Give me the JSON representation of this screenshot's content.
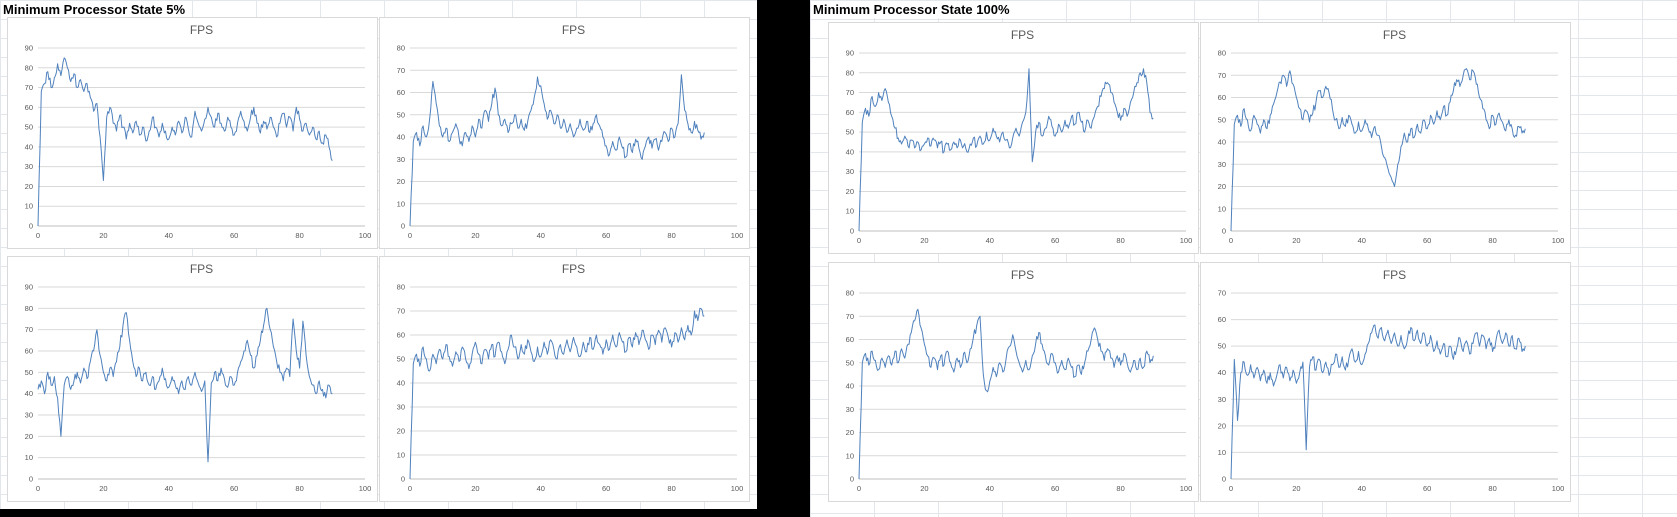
{
  "left_pane": {
    "title": "Minimum Processor State 5%"
  },
  "right_pane": {
    "title": "Minimum Processor State 100%"
  },
  "chart_data": [
    {
      "id": "5pct-run-1",
      "group": "Minimum Processor State 5%",
      "type": "line",
      "title": "FPS",
      "xlabel": "",
      "ylabel": "",
      "xlim": [
        0,
        100
      ],
      "ylim": [
        0,
        90
      ],
      "ytick_step": 10,
      "xticks": [
        0,
        20,
        40,
        60,
        80,
        100
      ],
      "x_data_max": 90,
      "gridlines": "horizontal",
      "legend": false,
      "line_color": "#4f81bd",
      "values": [
        0,
        68,
        72,
        78,
        70,
        75,
        82,
        76,
        85,
        80,
        73,
        77,
        70,
        74,
        68,
        72,
        65,
        58,
        62,
        45,
        23,
        55,
        60,
        52,
        48,
        56,
        50,
        44,
        52,
        47,
        53,
        46,
        50,
        43,
        48,
        55,
        50,
        45,
        52,
        48,
        44,
        50,
        46,
        53,
        47,
        55,
        49,
        45,
        58,
        52,
        48,
        54,
        60,
        55,
        50,
        57,
        52,
        48,
        55,
        50,
        46,
        52,
        58,
        53,
        48,
        55,
        60,
        52,
        47,
        53,
        49,
        55,
        50,
        45,
        52,
        57,
        50,
        55,
        48,
        60,
        54,
        48,
        52,
        46,
        50,
        44,
        48,
        42,
        46,
        40,
        33
      ]
    },
    {
      "id": "5pct-run-2",
      "group": "Minimum Processor State 5%",
      "type": "line",
      "title": "FPS",
      "xlabel": "",
      "ylabel": "",
      "xlim": [
        0,
        100
      ],
      "ylim": [
        0,
        80
      ],
      "ytick_step": 10,
      "xticks": [
        0,
        20,
        40,
        60,
        80,
        100
      ],
      "x_data_max": 90,
      "gridlines": "horizontal",
      "legend": false,
      "line_color": "#4f81bd",
      "values": [
        0,
        38,
        42,
        36,
        45,
        40,
        48,
        65,
        55,
        45,
        40,
        44,
        38,
        42,
        46,
        40,
        36,
        42,
        38,
        45,
        40,
        48,
        44,
        52,
        47,
        55,
        62,
        50,
        45,
        48,
        42,
        46,
        50,
        44,
        48,
        43,
        47,
        52,
        58,
        67,
        63,
        55,
        48,
        52,
        46,
        50,
        44,
        48,
        42,
        46,
        40,
        44,
        48,
        43,
        47,
        42,
        46,
        50,
        45,
        40,
        36,
        32,
        38,
        34,
        40,
        35,
        31,
        37,
        33,
        39,
        35,
        30,
        36,
        40,
        35,
        39,
        34,
        38,
        42,
        38,
        44,
        40,
        46,
        68,
        52,
        46,
        42,
        47,
        43,
        39,
        42
      ]
    },
    {
      "id": "5pct-run-3",
      "group": "Minimum Processor State 5%",
      "type": "line",
      "title": "FPS",
      "xlabel": "",
      "ylabel": "",
      "xlim": [
        0,
        100
      ],
      "ylim": [
        0,
        90
      ],
      "ytick_step": 10,
      "xticks": [
        0,
        20,
        40,
        60,
        80,
        100
      ],
      "x_data_max": 90,
      "gridlines": "horizontal",
      "legend": false,
      "line_color": "#4f81bd",
      "values": [
        42,
        46,
        40,
        50,
        44,
        48,
        38,
        20,
        44,
        48,
        42,
        46,
        50,
        45,
        52,
        47,
        55,
        60,
        70,
        58,
        50,
        46,
        52,
        48,
        55,
        62,
        72,
        78,
        65,
        55,
        48,
        52,
        46,
        50,
        44,
        48,
        42,
        46,
        52,
        47,
        43,
        48,
        44,
        40,
        46,
        42,
        48,
        44,
        50,
        45,
        41,
        46,
        8,
        45,
        50,
        46,
        52,
        47,
        43,
        48,
        44,
        50,
        55,
        60,
        65,
        58,
        52,
        58,
        65,
        72,
        80,
        70,
        62,
        55,
        50,
        46,
        52,
        48,
        75,
        60,
        52,
        74,
        58,
        48,
        44,
        40,
        46,
        42,
        38,
        44,
        40
      ]
    },
    {
      "id": "5pct-run-4",
      "group": "Minimum Processor State 5%",
      "type": "line",
      "title": "FPS",
      "xlabel": "",
      "ylabel": "",
      "xlim": [
        0,
        100
      ],
      "ylim": [
        0,
        80
      ],
      "ytick_step": 10,
      "xticks": [
        0,
        20,
        40,
        60,
        80,
        100
      ],
      "x_data_max": 90,
      "gridlines": "horizontal",
      "legend": false,
      "line_color": "#4f81bd",
      "values": [
        0,
        48,
        52,
        47,
        55,
        50,
        45,
        52,
        48,
        54,
        50,
        56,
        51,
        47,
        53,
        49,
        55,
        50,
        46,
        52,
        57,
        52,
        48,
        54,
        50,
        56,
        51,
        57,
        53,
        48,
        54,
        60,
        55,
        50,
        56,
        52,
        58,
        53,
        49,
        55,
        51,
        57,
        52,
        58,
        54,
        50,
        56,
        52,
        58,
        53,
        59,
        55,
        51,
        57,
        53,
        59,
        54,
        60,
        56,
        52,
        58,
        54,
        60,
        55,
        61,
        57,
        53,
        59,
        55,
        61,
        56,
        62,
        58,
        54,
        60,
        56,
        62,
        57,
        63,
        59,
        55,
        61,
        57,
        63,
        58,
        64,
        60,
        70,
        66,
        71,
        68
      ]
    },
    {
      "id": "100pct-run-1",
      "group": "Minimum Processor State 100%",
      "type": "line",
      "title": "FPS",
      "xlabel": "",
      "ylabel": "",
      "xlim": [
        0,
        100
      ],
      "ylim": [
        0,
        90
      ],
      "ytick_step": 10,
      "xticks": [
        0,
        20,
        40,
        60,
        80,
        100
      ],
      "x_data_max": 90,
      "gridlines": "horizontal",
      "legend": false,
      "line_color": "#4f81bd",
      "values": [
        0,
        55,
        62,
        58,
        68,
        63,
        70,
        66,
        72,
        65,
        58,
        52,
        47,
        44,
        48,
        43,
        46,
        42,
        45,
        41,
        44,
        47,
        43,
        46,
        42,
        45,
        40,
        44,
        41,
        45,
        42,
        46,
        43,
        40,
        44,
        47,
        43,
        48,
        44,
        50,
        46,
        52,
        48,
        45,
        50,
        46,
        42,
        47,
        52,
        48,
        55,
        60,
        82,
        35,
        50,
        55,
        48,
        52,
        58,
        53,
        48,
        54,
        50,
        56,
        52,
        58,
        54,
        60,
        55,
        50,
        56,
        52,
        58,
        63,
        68,
        72,
        75,
        70,
        65,
        60,
        56,
        62,
        58,
        65,
        70,
        75,
        80,
        82,
        75,
        60,
        57
      ]
    },
    {
      "id": "100pct-run-2",
      "group": "Minimum Processor State 100%",
      "type": "line",
      "title": "FPS",
      "xlabel": "",
      "ylabel": "",
      "xlim": [
        0,
        100
      ],
      "ylim": [
        0,
        80
      ],
      "ytick_step": 10,
      "xticks": [
        0,
        20,
        40,
        60,
        80,
        100
      ],
      "x_data_max": 90,
      "gridlines": "horizontal",
      "legend": false,
      "line_color": "#4f81bd",
      "values": [
        0,
        48,
        52,
        47,
        55,
        50,
        45,
        52,
        48,
        44,
        50,
        46,
        52,
        57,
        62,
        67,
        70,
        65,
        72,
        66,
        60,
        55,
        50,
        54,
        49,
        53,
        58,
        63,
        60,
        65,
        62,
        55,
        50,
        46,
        51,
        47,
        52,
        48,
        44,
        49,
        45,
        50,
        46,
        42,
        47,
        43,
        38,
        33,
        28,
        24,
        20,
        30,
        38,
        44,
        40,
        46,
        42,
        48,
        44,
        50,
        46,
        52,
        48,
        54,
        50,
        56,
        52,
        58,
        63,
        68,
        65,
        70,
        73,
        68,
        72,
        66,
        60,
        55,
        50,
        46,
        52,
        48,
        53,
        49,
        45,
        50,
        46,
        43,
        47,
        44,
        46
      ]
    },
    {
      "id": "100pct-run-3",
      "group": "Minimum Processor State 100%",
      "type": "line",
      "title": "FPS",
      "xlabel": "",
      "ylabel": "",
      "xlim": [
        0,
        100
      ],
      "ylim": [
        0,
        80
      ],
      "ytick_step": 10,
      "xticks": [
        0,
        20,
        40,
        60,
        80,
        100
      ],
      "x_data_max": 90,
      "gridlines": "horizontal",
      "legend": false,
      "line_color": "#4f81bd",
      "values": [
        0,
        50,
        54,
        49,
        55,
        51,
        47,
        52,
        48,
        53,
        49,
        55,
        50,
        56,
        52,
        58,
        63,
        68,
        73,
        65,
        58,
        53,
        48,
        52,
        47,
        53,
        49,
        55,
        50,
        46,
        52,
        48,
        54,
        50,
        56,
        61,
        66,
        70,
        45,
        38,
        42,
        48,
        44,
        50,
        46,
        52,
        57,
        62,
        55,
        50,
        46,
        51,
        47,
        53,
        58,
        63,
        58,
        53,
        49,
        54,
        50,
        46,
        51,
        47,
        52,
        48,
        44,
        49,
        45,
        50,
        55,
        60,
        65,
        60,
        55,
        51,
        56,
        52,
        48,
        53,
        49,
        54,
        50,
        46,
        51,
        47,
        52,
        48,
        55,
        50,
        53
      ]
    },
    {
      "id": "100pct-run-4",
      "group": "Minimum Processor State 100%",
      "type": "line",
      "title": "FPS",
      "xlabel": "",
      "ylabel": "",
      "xlim": [
        0,
        100
      ],
      "ylim": [
        0,
        70
      ],
      "ytick_step": 10,
      "xticks": [
        0,
        20,
        40,
        60,
        80,
        100
      ],
      "x_data_max": 90,
      "gridlines": "horizontal",
      "legend": false,
      "line_color": "#4f81bd",
      "values": [
        0,
        45,
        22,
        40,
        44,
        39,
        43,
        38,
        42,
        37,
        41,
        36,
        40,
        35,
        39,
        43,
        38,
        42,
        37,
        41,
        36,
        40,
        44,
        11,
        42,
        46,
        41,
        45,
        40,
        44,
        39,
        43,
        47,
        42,
        46,
        41,
        45,
        49,
        44,
        48,
        43,
        47,
        51,
        55,
        58,
        53,
        57,
        52,
        56,
        51,
        55,
        50,
        54,
        49,
        53,
        57,
        52,
        56,
        51,
        55,
        50,
        54,
        48,
        52,
        47,
        51,
        46,
        50,
        45,
        49,
        53,
        48,
        52,
        47,
        51,
        55,
        50,
        54,
        49,
        53,
        48,
        52,
        56,
        51,
        55,
        50,
        54,
        49,
        53,
        48,
        50
      ]
    }
  ]
}
